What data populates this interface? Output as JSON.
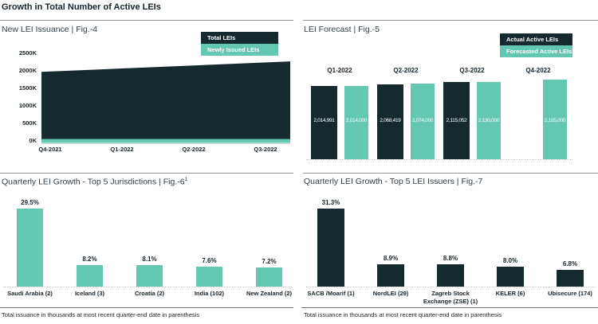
{
  "header": {
    "title": "Growth in Total Number of Active LEIs"
  },
  "colors": {
    "dark": "#15292f",
    "teal": "#64c7b2"
  },
  "footnote_shared": "Total issuance in thousands at most recent quarter-end date in parenthesis",
  "chart_data": [
    {
      "id": "fig4",
      "type": "area",
      "title": "New LEI Issuance | Fig.-4",
      "legend": [
        "Total LEIs",
        "Newly Issued LEIs"
      ],
      "legend_position": "top-right",
      "y_ticks": [
        "2500K",
        "2000K",
        "1500K",
        "1000K",
        "500K",
        "0K"
      ],
      "ylim": [
        0,
        2500000
      ],
      "categories": [
        "Q4-2021",
        "Q1-2022",
        "Q2-2022",
        "Q3-2022"
      ],
      "series": [
        {
          "name": "Total LEIs",
          "values": [
            1970000,
            2070000,
            2170000,
            2270000
          ]
        },
        {
          "name": "Newly Issued LEIs",
          "values": [
            55000,
            60000,
            60000,
            65000
          ]
        }
      ]
    },
    {
      "id": "fig5",
      "type": "bar",
      "title": "LEI Forecast | Fig.-5",
      "legend": [
        "Actual Active LEIs",
        "Forecasted Active LEIs"
      ],
      "legend_position": "top-right",
      "categories": [
        "Q1-2022",
        "Q2-2022",
        "Q3-2022",
        "Q4-2022"
      ],
      "series": [
        {
          "name": "Actual Active LEIs",
          "values": [
            2014991,
            2068419,
            2115052,
            null
          ],
          "labels": [
            "2,014,991",
            "2,068,419",
            "2,115,052",
            null
          ]
        },
        {
          "name": "Forecasted Active LEIs",
          "values": [
            2014000,
            2074000,
            2130000,
            2195000
          ],
          "labels": [
            "2,014,000",
            "2,074,000",
            "2,130,000",
            "2,195,000"
          ]
        }
      ]
    },
    {
      "id": "fig6",
      "type": "bar",
      "title": "Quarterly LEI Growth - Top 5 Jurisdictions | Fig.-6",
      "title_sup": "1",
      "categories": [
        "Saudi Arabia (2)",
        "Iceland (3)",
        "Croatia (2)",
        "India (102)",
        "New Zealand (2)"
      ],
      "values": [
        29.5,
        8.2,
        8.1,
        7.6,
        7.2
      ],
      "value_labels": [
        "29.5%",
        "8.2%",
        "8.1%",
        "7.6%",
        "7.2%"
      ],
      "footnote": "Total issuance in thousands at most recent quarter-end date in parenthesis"
    },
    {
      "id": "fig7",
      "type": "bar",
      "title": "Quarterly LEI Growth - Top 5 LEI Issuers | Fig.-7",
      "categories": [
        "SACB /Moarif (1)",
        "NordLEI (29)",
        "Zagreb Stock Exchange (ZSE) (1)",
        "KELER (6)",
        "Ubisecure (174)"
      ],
      "values": [
        31.3,
        8.9,
        8.8,
        8.0,
        6.8
      ],
      "value_labels": [
        "31.3%",
        "8.9%",
        "8.8%",
        "8.0%",
        "6.8%"
      ],
      "footnote": "Total issuance in thousands at most recent quarter-end date in parenthesis"
    }
  ]
}
